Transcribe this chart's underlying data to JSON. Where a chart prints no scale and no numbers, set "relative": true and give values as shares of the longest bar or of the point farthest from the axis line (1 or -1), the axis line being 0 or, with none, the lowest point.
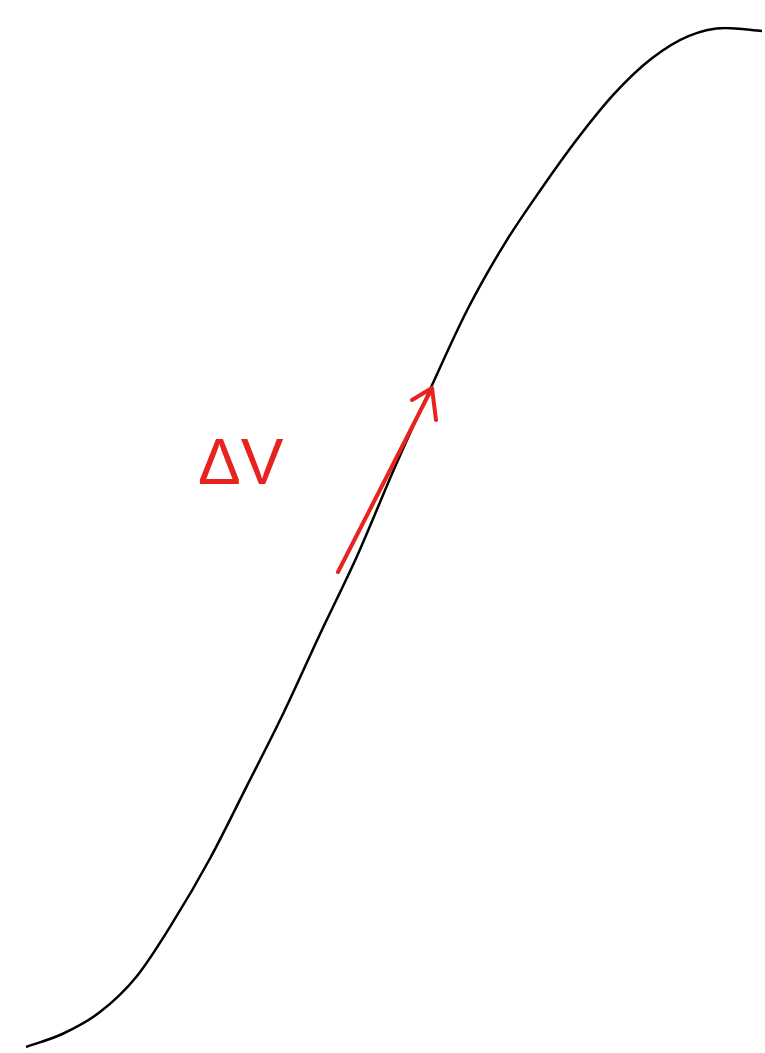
{
  "chart_data": {
    "type": "line",
    "relative": true,
    "color": "#000000",
    "categories": [
      null,
      null,
      null,
      null,
      null,
      null,
      null,
      null,
      null,
      null,
      null,
      null,
      null,
      null,
      null,
      null,
      null,
      null,
      null,
      null,
      null
    ],
    "values": [
      0,
      0.013,
      0.034,
      0.069,
      0.123,
      0.185,
      0.256,
      0.328,
      0.406,
      0.482,
      0.567,
      0.647,
      0.724,
      0.788,
      0.842,
      0.892,
      0.936,
      0.97,
      0.992,
      1.0,
      0.997
    ],
    "annotations": [
      "ΔV"
    ]
  }
}
